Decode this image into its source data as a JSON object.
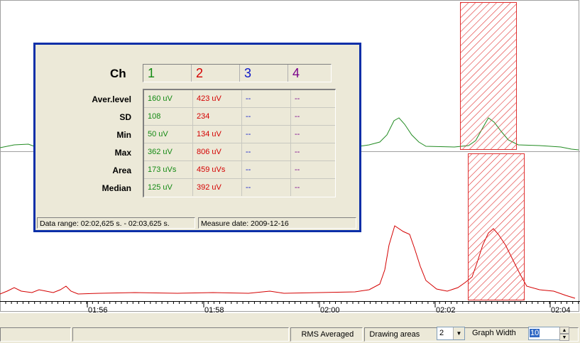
{
  "timeline": {
    "tick_labels": [
      "01:56",
      "01:58",
      "02:00",
      "02:02",
      "02:04"
    ]
  },
  "traces": {
    "top": {
      "color": "#228b22",
      "name": "Channel 1"
    },
    "bottom": {
      "color": "#d40000",
      "name": "Channel 2"
    }
  },
  "selection": {
    "color": "#e03030"
  },
  "stats_panel": {
    "ch_header": "Ch",
    "channels": [
      "1",
      "2",
      "3",
      "4"
    ],
    "channel_colors": [
      "#138a13",
      "#d40000",
      "#0a16c8",
      "#7a008a"
    ],
    "rows": [
      {
        "label": "Aver.level",
        "values": [
          "160 uV",
          "423 uV",
          "--",
          "--"
        ]
      },
      {
        "label": "SD",
        "values": [
          "108",
          "234",
          "--",
          "--"
        ]
      },
      {
        "label": "Min",
        "values": [
          "50 uV",
          "134 uV",
          "--",
          "--"
        ]
      },
      {
        "label": "Max",
        "values": [
          "362 uV",
          "806 uV",
          "--",
          "--"
        ]
      },
      {
        "label": "Area",
        "values": [
          "173 uVs",
          "459 uVs",
          "--",
          "--"
        ]
      },
      {
        "label": "Median",
        "values": [
          "125 uV",
          "392 uV",
          "--",
          "--"
        ]
      }
    ],
    "data_range": "Data range: 02:02,625 s. - 02:03,625 s.",
    "measure_date": "Measure date: 2009-12-16"
  },
  "bottom_bar": {
    "mode_label": "RMS Averaged",
    "drawing_areas_label": "Drawing areas",
    "drawing_areas_value": "2",
    "graph_width_label": "Graph Width",
    "graph_width_value": "10"
  }
}
